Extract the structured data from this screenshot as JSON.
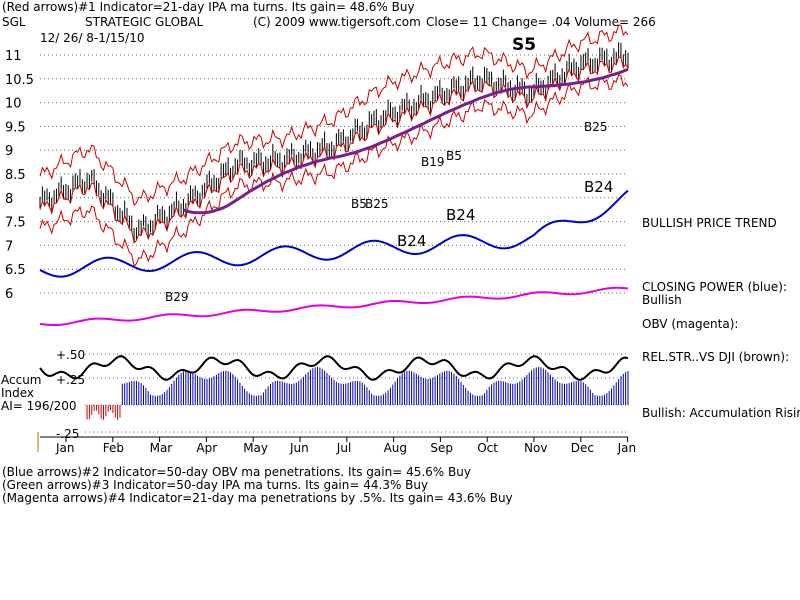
{
  "header": {
    "line1": "(Red arrows)#1 Indicator=21-day IPA ma turns.  Its gain= 48.6% Buy",
    "symbol": "SGL",
    "company": "STRATEGIC GLOBAL",
    "copyright": "(C) 2009 www.tigersoft.com",
    "close": "Close=  11  Change= .04 Volume= 266",
    "date_range": "12/ 26/ 8-1/15/10"
  },
  "footer": {
    "line1": "(Blue arrows)#2 Indicator=50-day OBV ma penetrations.  Its gain= 45.6% Buy",
    "line2": "(Green arrows)#3 Indicator=50-day IPA ma turns.  Its gain= 44.3% Buy",
    "line3": "(Magenta arrows)#4 Indicator=21-day ma penetrations by .5%.  Its gain= 43.6% Buy"
  },
  "right_labels": {
    "bullish_trend": "BULLISH PRICE TREND",
    "closing_power": "CLOSING POWER (blue):",
    "closing_power_status": "Bullish",
    "obv": "OBV (magenta):",
    "relstr": "REL.STR..VS DJI (brown):",
    "accum_status": "Bullish: Accumulation Rising"
  },
  "left_labels": {
    "accum": "Accum",
    "index": "Index",
    "ai": "AI= 196/200",
    "p50": "+.50",
    "p25": "+.25",
    "m25": "-.25"
  },
  "signals": [
    {
      "text": "S5",
      "color": "#000000",
      "size": "big"
    },
    {
      "text": "B29",
      "color": "#000000",
      "size": "small"
    },
    {
      "text": "B19",
      "color": "#000000",
      "size": "small"
    },
    {
      "text": "B5",
      "color": "#000000",
      "size": "small"
    },
    {
      "text": "B5",
      "color": "#000000",
      "size": "small"
    },
    {
      "text": "B25",
      "color": "#000000",
      "size": "small"
    },
    {
      "text": "B25",
      "color": "#000000",
      "size": "small"
    },
    {
      "text": "B24",
      "color": "#000000",
      "size": "big"
    },
    {
      "text": "B24",
      "color": "#000000",
      "size": "big"
    },
    {
      "text": "B24",
      "color": "#000000",
      "size": "big"
    }
  ],
  "chart_data": {
    "type": "line",
    "x_tick_labels": [
      "Jan",
      "Feb",
      "Mar",
      "Apr",
      "May",
      "Jun",
      "Jul",
      "Aug",
      "Sep",
      "Oct",
      "Nov",
      "Dec",
      "Jan"
    ],
    "y_tick_labels": [
      "11",
      "10.5",
      "10",
      "9.5",
      "9",
      "8.5",
      "8",
      "7.5",
      "7",
      "6.5",
      "6"
    ],
    "ylim": [
      5.9,
      11.2
    ],
    "series": [],
    "price_monthly_approx": {
      "x": [
        "Jan",
        "Feb",
        "Mar",
        "Apr",
        "May",
        "Jun",
        "Jul",
        "Aug",
        "Sep",
        "Oct",
        "Nov",
        "Dec",
        "Jan"
      ],
      "values": [
        7.9,
        8.4,
        7.3,
        7.9,
        8.7,
        8.8,
        9.1,
        9.7,
        10.1,
        10.5,
        10.2,
        10.8,
        11
      ]
    },
    "colors": {
      "price": "#000000",
      "bands": "#cc0000",
      "ma": "#7a1f8a",
      "closing_power": "#0000cc",
      "obv": "#e000e0",
      "relstr": "#000000",
      "accum_pos": "#0000aa",
      "accum_neg": "#cc0000"
    }
  }
}
